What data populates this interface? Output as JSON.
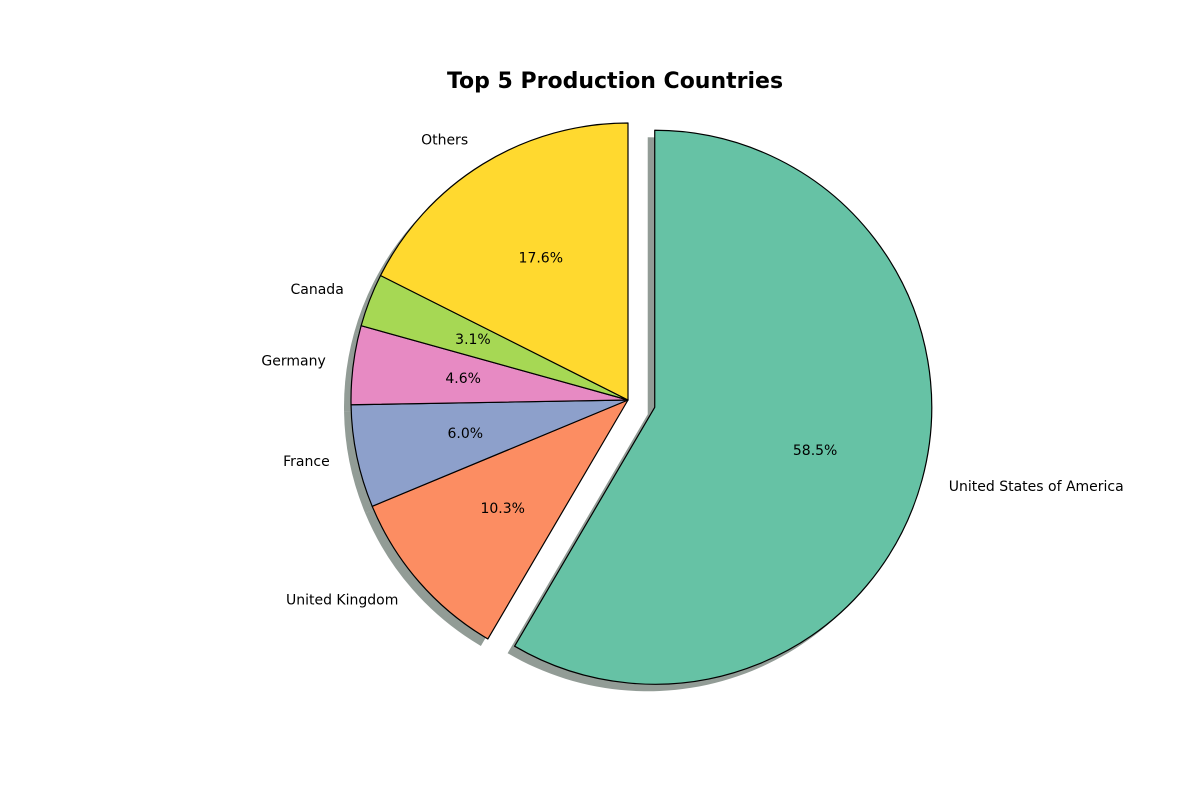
{
  "chart_data": {
    "type": "pie",
    "title": "Top 5 Production Countries",
    "slices": [
      {
        "label": "United States of America",
        "value": 58.5,
        "pct_label": "58.5%",
        "color": "#66c2a5",
        "exploded": true
      },
      {
        "label": "United Kingdom",
        "value": 10.3,
        "pct_label": "10.3%",
        "color": "#fc8d62",
        "exploded": false
      },
      {
        "label": "France",
        "value": 6.0,
        "pct_label": "6.0%",
        "color": "#8da0cb",
        "exploded": false
      },
      {
        "label": "Germany",
        "value": 4.6,
        "pct_label": "4.6%",
        "color": "#e78ac3",
        "exploded": false
      },
      {
        "label": "Canada",
        "value": 3.1,
        "pct_label": "3.1%",
        "color": "#a6d854",
        "exploded": false
      },
      {
        "label": "Others",
        "value": 17.6,
        "pct_label": "17.6%",
        "color": "#ffd92f",
        "exploded": false
      }
    ],
    "start_angle_deg": 90,
    "direction": "clockwise",
    "shadow": true,
    "edge_color": "#000000"
  }
}
